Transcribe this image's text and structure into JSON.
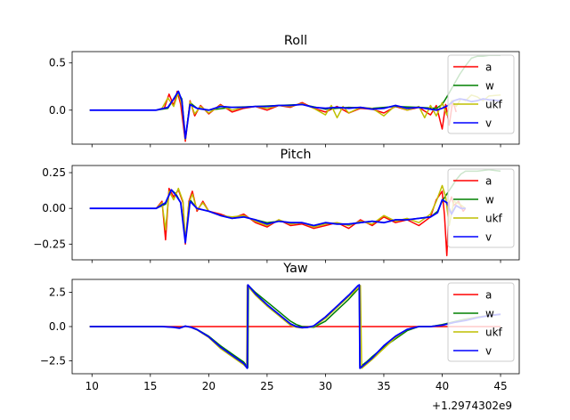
{
  "chart_data": [
    {
      "type": "line",
      "title": "Roll",
      "xlim": [
        8.3,
        46.6
      ],
      "ylim": [
        -0.36,
        0.62
      ],
      "yticks": [
        {
          "v": 0.5,
          "label": "0.5"
        },
        {
          "v": 0.0,
          "label": "0.0"
        }
      ],
      "legend_position": "right",
      "series": [
        {
          "name": "a",
          "color": "#ff0000",
          "x": [
            9.8,
            15.5,
            16.2,
            16.6,
            17.0,
            17.3,
            17.6,
            18.0,
            18.4,
            18.8,
            19.3,
            20.0,
            21.0,
            22.0,
            23.0,
            24.0,
            25.0,
            26.0,
            27.0,
            28.0,
            29.0,
            30.0,
            31.0,
            32.0,
            33.0,
            34.0,
            35.0,
            36.0,
            37.0,
            38.0,
            39.0,
            39.5,
            40.0,
            40.3,
            40.6,
            40.9,
            41.2
          ],
          "y": [
            0.0,
            0.0,
            0.02,
            0.17,
            0.05,
            0.2,
            0.06,
            -0.33,
            0.1,
            -0.06,
            0.05,
            -0.04,
            0.06,
            -0.02,
            0.02,
            0.04,
            0.0,
            0.05,
            0.03,
            0.08,
            0.02,
            -0.02,
            0.04,
            -0.03,
            0.02,
            0.01,
            -0.03,
            0.04,
            0.0,
            0.03,
            -0.05,
            0.05,
            -0.2,
            0.06,
            -0.16,
            0.1,
            -0.02
          ]
        },
        {
          "name": "w",
          "color": "#008000",
          "x": [
            9.8,
            15.5,
            16.5,
            17.0,
            17.4,
            17.7,
            18.0,
            18.4,
            19.0,
            20.0,
            22.0,
            24.0,
            26.0,
            28.0,
            30.0,
            32.0,
            34.0,
            36.0,
            38.0,
            39.5,
            40.0,
            40.5,
            41.0,
            41.5,
            42.0,
            42.5,
            43.0,
            43.5,
            44.0,
            45.0
          ],
          "y": [
            0.0,
            0.0,
            0.02,
            0.12,
            0.18,
            0.12,
            -0.3,
            0.08,
            0.02,
            0.0,
            0.03,
            0.04,
            0.05,
            0.06,
            0.01,
            0.03,
            0.02,
            0.04,
            0.03,
            0.02,
            0.06,
            0.16,
            0.27,
            0.38,
            0.47,
            0.55,
            0.57,
            0.57,
            0.58,
            0.58
          ]
        },
        {
          "name": "ukf",
          "color": "#bfbf00",
          "x": [
            9.8,
            15.5,
            16.0,
            16.5,
            17.0,
            17.4,
            17.7,
            18.0,
            18.4,
            18.8,
            19.3,
            20.0,
            21.0,
            22.0,
            23.0,
            24.0,
            25.0,
            26.0,
            27.0,
            28.0,
            29.0,
            30.0,
            30.5,
            31.0,
            31.5,
            32.0,
            33.0,
            34.0,
            35.0,
            36.0,
            37.0,
            38.0,
            38.5,
            39.0,
            39.5,
            40.0,
            40.4,
            40.8,
            41.2,
            41.6,
            42.0,
            42.5,
            43.0,
            43.5,
            44.0,
            45.0
          ],
          "y": [
            0.0,
            0.0,
            0.02,
            0.13,
            0.04,
            0.19,
            0.05,
            -0.31,
            0.09,
            -0.04,
            0.04,
            -0.03,
            0.05,
            0.0,
            0.03,
            0.04,
            0.02,
            0.05,
            0.04,
            0.07,
            0.02,
            -0.05,
            0.05,
            -0.08,
            0.04,
            -0.03,
            0.03,
            0.02,
            -0.06,
            0.05,
            0.0,
            0.04,
            -0.08,
            0.05,
            -0.06,
            0.08,
            -0.05,
            0.1,
            0.04,
            0.12,
            0.1,
            0.16,
            0.14,
            0.1,
            0.15,
            0.16
          ]
        },
        {
          "name": "v",
          "color": "#0000ff",
          "x": [
            9.8,
            15.5,
            16.5,
            17.0,
            17.4,
            17.7,
            18.0,
            18.4,
            19.0,
            20.0,
            21.0,
            22.0,
            23.0,
            24.0,
            25.0,
            26.0,
            27.0,
            28.0,
            29.0,
            30.0,
            31.0,
            32.0,
            33.0,
            34.0,
            35.0,
            36.0,
            37.0,
            38.0,
            39.0,
            39.5,
            40.0,
            40.5,
            41.0,
            41.5,
            42.0,
            42.5,
            43.0,
            43.5,
            44.0,
            45.0
          ],
          "y": [
            0.0,
            0.0,
            0.03,
            0.12,
            0.2,
            0.1,
            -0.3,
            0.06,
            0.02,
            0.0,
            0.04,
            0.03,
            0.03,
            0.04,
            0.04,
            0.05,
            0.05,
            0.06,
            0.03,
            0.02,
            0.03,
            0.02,
            0.03,
            0.01,
            0.02,
            0.05,
            0.02,
            0.03,
            0.01,
            0.0,
            0.02,
            0.05,
            0.1,
            0.12,
            0.11,
            0.09,
            0.1,
            0.12,
            0.11,
            0.1
          ]
        }
      ]
    },
    {
      "type": "line",
      "title": "Pitch",
      "xlim": [
        8.3,
        46.6
      ],
      "ylim": [
        -0.36,
        0.3
      ],
      "yticks": [
        {
          "v": 0.25,
          "label": "0.25"
        },
        {
          "v": 0.0,
          "label": "0.00"
        },
        {
          "v": -0.25,
          "label": "−0.25"
        }
      ],
      "legend_position": "right",
      "series": [
        {
          "name": "a",
          "color": "#ff0000",
          "x": [
            9.8,
            15.5,
            16.0,
            16.3,
            16.6,
            17.0,
            17.4,
            17.8,
            18.0,
            18.3,
            18.6,
            19.0,
            19.5,
            20.0,
            21.0,
            22.0,
            23.0,
            24.0,
            25.0,
            26.0,
            27.0,
            28.0,
            29.0,
            30.0,
            31.0,
            32.0,
            33.0,
            34.0,
            35.0,
            36.0,
            37.0,
            38.0,
            39.0,
            39.5,
            40.0,
            40.2,
            40.4,
            40.6,
            40.8,
            41.0,
            41.4,
            41.8,
            42.0
          ],
          "y": [
            0.0,
            0.0,
            0.05,
            -0.22,
            0.14,
            0.08,
            0.13,
            0.04,
            -0.25,
            0.05,
            0.12,
            -0.02,
            0.05,
            -0.02,
            -0.04,
            -0.07,
            -0.04,
            -0.1,
            -0.13,
            -0.08,
            -0.12,
            -0.11,
            -0.14,
            -0.12,
            -0.1,
            -0.14,
            -0.08,
            -0.12,
            -0.06,
            -0.1,
            -0.08,
            -0.12,
            -0.06,
            0.06,
            0.12,
            -0.05,
            -0.33,
            0.04,
            0.08,
            0.02,
            0.05,
            -0.02,
            0.0
          ]
        },
        {
          "name": "w",
          "color": "#008000",
          "x": [
            9.8,
            15.5,
            16.3,
            16.8,
            17.2,
            17.6,
            18.0,
            18.4,
            19.0,
            20.0,
            21.0,
            22.0,
            23.0,
            24.0,
            25.0,
            26.0,
            27.0,
            28.0,
            29.0,
            30.0,
            31.0,
            32.0,
            33.0,
            34.0,
            35.0,
            36.0,
            37.0,
            38.0,
            39.0,
            39.6,
            40.0,
            40.4,
            40.8,
            41.2,
            41.6,
            42.0,
            42.5,
            43.0,
            44.0,
            45.0
          ],
          "y": [
            0.0,
            0.0,
            0.03,
            0.13,
            0.1,
            0.04,
            -0.22,
            0.06,
            0.0,
            -0.02,
            -0.05,
            -0.07,
            -0.06,
            -0.08,
            -0.1,
            -0.09,
            -0.1,
            -0.1,
            -0.12,
            -0.1,
            -0.11,
            -0.11,
            -0.1,
            -0.09,
            -0.1,
            -0.08,
            -0.08,
            -0.07,
            -0.06,
            -0.02,
            0.05,
            0.1,
            0.15,
            0.2,
            0.24,
            0.26,
            0.26,
            0.26,
            0.27,
            0.26
          ]
        },
        {
          "name": "ukf",
          "color": "#bfbf00",
          "x": [
            9.8,
            15.5,
            16.0,
            16.3,
            16.6,
            17.0,
            17.4,
            17.8,
            18.0,
            18.3,
            18.6,
            19.0,
            19.5,
            20.0,
            21.0,
            22.0,
            23.0,
            24.0,
            25.0,
            26.0,
            27.0,
            28.0,
            29.0,
            30.0,
            31.0,
            32.0,
            33.0,
            34.0,
            35.0,
            36.0,
            37.0,
            38.0,
            39.0,
            39.5,
            40.0,
            40.3,
            40.6,
            41.0,
            41.5,
            42.0
          ],
          "y": [
            0.0,
            0.0,
            0.04,
            -0.15,
            0.12,
            0.06,
            0.14,
            0.05,
            -0.23,
            0.04,
            0.1,
            -0.01,
            0.04,
            -0.02,
            -0.05,
            -0.06,
            -0.05,
            -0.09,
            -0.12,
            -0.08,
            -0.11,
            -0.1,
            -0.13,
            -0.11,
            -0.1,
            -0.12,
            -0.09,
            -0.11,
            -0.05,
            -0.09,
            -0.07,
            -0.1,
            -0.04,
            0.05,
            0.16,
            0.08,
            -0.12,
            0.05,
            0.03,
            0.0
          ]
        },
        {
          "name": "v",
          "color": "#0000ff",
          "x": [
            9.8,
            15.5,
            16.3,
            16.8,
            17.2,
            17.6,
            18.0,
            18.4,
            19.0,
            20.0,
            21.0,
            22.0,
            23.0,
            24.0,
            25.0,
            26.0,
            27.0,
            28.0,
            29.0,
            30.0,
            31.0,
            32.0,
            33.0,
            34.0,
            35.0,
            36.0,
            37.0,
            38.0,
            39.0,
            39.6,
            40.0,
            40.4,
            40.8,
            41.2,
            41.6,
            42.0
          ],
          "y": [
            0.0,
            0.0,
            0.04,
            0.13,
            0.09,
            0.04,
            -0.24,
            0.05,
            0.0,
            -0.02,
            -0.05,
            -0.07,
            -0.06,
            -0.08,
            -0.11,
            -0.09,
            -0.1,
            -0.1,
            -0.12,
            -0.1,
            -0.11,
            -0.11,
            -0.1,
            -0.09,
            -0.1,
            -0.08,
            -0.08,
            -0.07,
            -0.06,
            -0.03,
            0.06,
            0.04,
            -0.04,
            0.02,
            0.0,
            0.0
          ]
        }
      ]
    },
    {
      "type": "line",
      "title": "Yaw",
      "xlim": [
        8.3,
        46.6
      ],
      "ylim": [
        -3.45,
        3.45
      ],
      "yticks": [
        {
          "v": 2.5,
          "label": "2.5"
        },
        {
          "v": 0.0,
          "label": "0.0"
        },
        {
          "v": -2.5,
          "label": "−2.5"
        }
      ],
      "legend_position": "right",
      "series": [
        {
          "name": "a",
          "color": "#ff0000",
          "x": [
            9.8,
            45.0
          ],
          "y": [
            0.0,
            0.0
          ]
        },
        {
          "name": "w",
          "color": "#008000",
          "x": [
            9.8,
            16.0,
            17.0,
            17.5,
            18.0,
            18.5,
            19.0,
            20.0,
            21.0,
            22.0,
            23.0,
            23.35,
            23.4,
            24.0,
            25.0,
            26.0,
            27.0,
            27.5,
            28.0,
            29.0,
            30.0,
            31.0,
            32.0,
            32.9,
            32.95,
            33.5,
            34.0,
            35.0,
            36.0,
            37.0,
            38.0,
            39.0,
            40.0,
            41.0,
            42.0,
            43.0,
            44.0,
            45.0
          ],
          "y": [
            0.0,
            0.0,
            -0.05,
            -0.1,
            0.03,
            -0.05,
            -0.2,
            -0.7,
            -1.4,
            -2.0,
            -2.6,
            -3.0,
            3.0,
            2.5,
            1.8,
            1.1,
            0.4,
            0.15,
            0.0,
            -0.05,
            0.4,
            1.2,
            2.0,
            2.85,
            -2.95,
            -2.6,
            -2.2,
            -1.5,
            -0.9,
            -0.3,
            0.0,
            0.0,
            0.15,
            0.35,
            0.55,
            0.7,
            0.8,
            0.9
          ]
        },
        {
          "name": "ukf",
          "color": "#bfbf00",
          "x": [
            9.8,
            16.0,
            17.0,
            17.5,
            18.0,
            18.5,
            19.0,
            20.0,
            21.0,
            22.0,
            23.0,
            23.25,
            23.3,
            24.0,
            25.0,
            26.0,
            27.0,
            27.5,
            28.0,
            28.5,
            29.0,
            30.0,
            31.0,
            32.0,
            32.9,
            33.0,
            33.1,
            34.0,
            35.0,
            36.0,
            37.0,
            38.0,
            39.0,
            40.0,
            41.0,
            42.0,
            43.0,
            44.0,
            45.0
          ],
          "y": [
            0.0,
            0.0,
            -0.05,
            -0.12,
            0.03,
            -0.06,
            -0.25,
            -0.8,
            -1.6,
            -2.2,
            -2.8,
            -3.0,
            3.0,
            2.3,
            1.5,
            0.8,
            0.1,
            -0.05,
            -0.1,
            -0.05,
            0.0,
            0.6,
            1.4,
            2.2,
            2.9,
            3.0,
            -3.05,
            -2.4,
            -1.6,
            -0.8,
            -0.2,
            0.0,
            0.0,
            0.1,
            0.3,
            0.5,
            0.7,
            0.8,
            0.9
          ]
        },
        {
          "name": "v",
          "color": "#0000ff",
          "x": [
            9.8,
            16.0,
            17.0,
            17.5,
            18.0,
            18.5,
            19.0,
            20.0,
            21.0,
            22.0,
            23.0,
            23.3,
            23.35,
            24.0,
            25.0,
            26.0,
            27.0,
            27.5,
            28.0,
            28.5,
            29.0,
            30.0,
            31.0,
            32.0,
            32.8,
            32.9,
            32.95,
            34.0,
            35.0,
            36.0,
            37.0,
            38.0,
            39.0,
            40.0,
            41.0,
            42.0,
            43.0,
            44.0,
            45.0
          ],
          "y": [
            0.0,
            0.0,
            -0.05,
            -0.12,
            0.03,
            -0.06,
            -0.22,
            -0.75,
            -1.5,
            -2.1,
            -2.7,
            -3.05,
            3.05,
            2.4,
            1.6,
            0.9,
            0.2,
            0.0,
            -0.08,
            -0.05,
            0.05,
            0.7,
            1.5,
            2.3,
            3.0,
            3.05,
            -3.05,
            -2.3,
            -1.4,
            -0.7,
            -0.2,
            0.0,
            0.0,
            0.1,
            0.3,
            0.45,
            0.65,
            0.8,
            0.9
          ]
        }
      ]
    }
  ],
  "x_axis": {
    "ticks": [
      {
        "v": 10,
        "label": "10"
      },
      {
        "v": 15,
        "label": "15"
      },
      {
        "v": 20,
        "label": "20"
      },
      {
        "v": 25,
        "label": "25"
      },
      {
        "v": 30,
        "label": "30"
      },
      {
        "v": 35,
        "label": "35"
      },
      {
        "v": 40,
        "label": "40"
      },
      {
        "v": 45,
        "label": "45"
      }
    ],
    "offset_label": "+1.2974302e9"
  }
}
